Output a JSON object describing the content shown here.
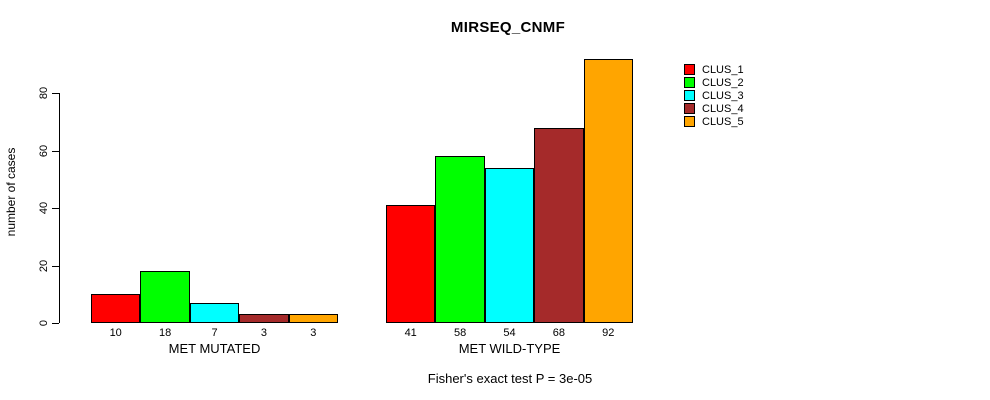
{
  "chart_data": {
    "type": "bar",
    "title": "MIRSEQ_CNMF",
    "ylabel": "number of cases",
    "xlabel": "",
    "groups": [
      {
        "label": "MET MUTATED",
        "values": [
          10,
          18,
          7,
          3,
          3
        ]
      },
      {
        "label": "MET WILD-TYPE",
        "values": [
          41,
          58,
          54,
          68,
          92
        ]
      }
    ],
    "series": [
      {
        "name": "CLUS_1",
        "color": "#FF0000"
      },
      {
        "name": "CLUS_2",
        "color": "#00FF00"
      },
      {
        "name": "CLUS_3",
        "color": "#00FFFF"
      },
      {
        "name": "CLUS_4",
        "color": "#A52A2A"
      },
      {
        "name": "CLUS_5",
        "color": "#FFA500"
      }
    ],
    "yticks": [
      0,
      20,
      40,
      60,
      80
    ],
    "ylim": [
      0,
      92
    ],
    "bar_value_labels_shown": true,
    "grid": false,
    "legend_position": "right",
    "annotation": "Fisher's exact test P = 3e-05",
    "axis_color": "#000000",
    "bar_border_color": "#000000",
    "background_color": "#ffffff"
  }
}
